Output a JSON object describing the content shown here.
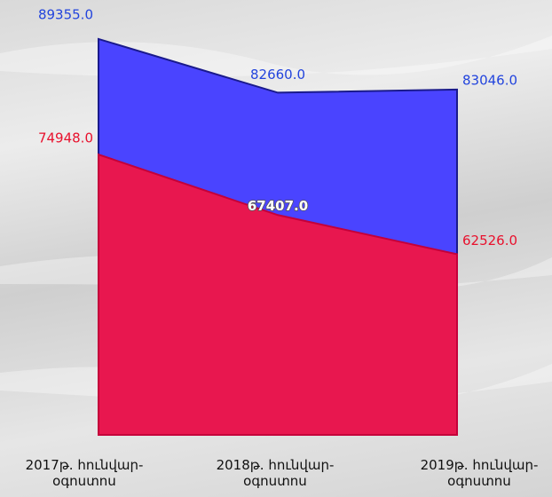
{
  "chart_data": {
    "type": "area",
    "categories": [
      "2017թ. հունվար-օգոստոս",
      "2018թ. հունվար-օգոստոս",
      "2019թ. հունվար-օգոստոս"
    ],
    "series": [
      {
        "name": null,
        "color": "#4a44ff",
        "values": [
          89355.0,
          82660.0,
          83046.0
        ],
        "value_labels": [
          "89355.0",
          "82660.0",
          "83046.0"
        ]
      },
      {
        "name": null,
        "color": "#e8174f",
        "values": [
          74948.0,
          67407.0,
          62526.0
        ],
        "value_labels": [
          "74948.0",
          "67407.0",
          "62526.0"
        ]
      }
    ],
    "ylim": [
      40000,
      92000
    ]
  }
}
